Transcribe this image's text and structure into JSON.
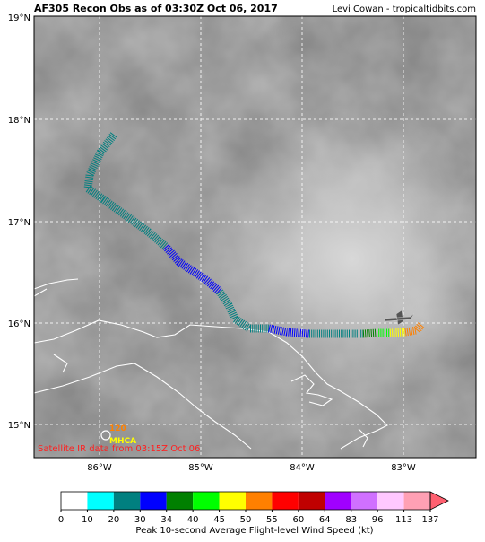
{
  "header": {
    "title": "AF305 Recon Obs as of 03:30Z Oct 06, 2017",
    "credit": "Levi Cowan - tropicaltidbits.com"
  },
  "map": {
    "lat_labels": [
      "19°N",
      "18°N",
      "17°N",
      "16°N",
      "15°N"
    ],
    "lon_labels": [
      "86°W",
      "85°W",
      "84°W",
      "83°W"
    ],
    "satellite_note": "Satellite IR data from 03:15Z Oct 06",
    "station_value": "120",
    "station_name": "MHCA"
  },
  "colorbar": {
    "label": "Peak 10-second Average Flight-level Wind Speed (kt)",
    "ticks": [
      0,
      10,
      20,
      30,
      34,
      40,
      45,
      50,
      55,
      60,
      64,
      83,
      96,
      113,
      137
    ],
    "colors": [
      "#ffffff",
      "#00ffff",
      "#008080",
      "#0000ff",
      "#008000",
      "#00ff00",
      "#ffff00",
      "#ff8000",
      "#ff0000",
      "#c00000",
      "#a000ff",
      "#d070ff",
      "#ffc8ff",
      "#ffa0b4"
    ],
    "extend_color": "#ff6070"
  }
}
